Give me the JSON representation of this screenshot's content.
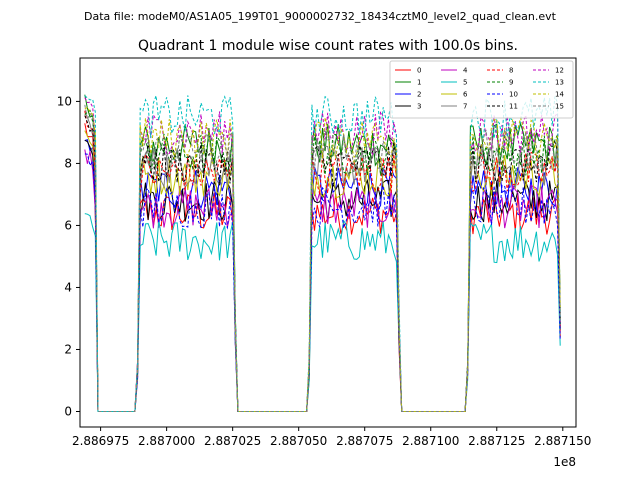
{
  "suptitle": "Data file: modeM0/AS1A05_199T01_9000002732_18434cztM0_level2_quad_clean.evt",
  "chart_data": {
    "type": "line",
    "title": "Quadrant 1 module wise count rates with 100.0s bins.",
    "xlabel": "",
    "ylabel": "",
    "x_offset_label": "1e8",
    "xlim": [
      288696720,
      288715500
    ],
    "ylim": [
      -0.5,
      11.4
    ],
    "x_ticks": [
      288697500,
      288700000,
      288702500,
      288705000,
      288707500,
      288710000,
      288712500,
      288715000
    ],
    "x_tick_labels": [
      "2.886975",
      "2.887000",
      "2.887025",
      "2.887050",
      "2.887075",
      "2.887100",
      "2.887125",
      "2.887150"
    ],
    "y_ticks": [
      0,
      2,
      4,
      6,
      8,
      10
    ],
    "y_tick_labels": [
      "0",
      "2",
      "4",
      "6",
      "8",
      "10"
    ],
    "grid": false,
    "legend_position": "upper-right",
    "bin_seconds": 100,
    "x_start": 288696900,
    "segments": [
      {
        "start": 288696900,
        "end": 288697300,
        "state": "on"
      },
      {
        "start": 288697400,
        "end": 288698800,
        "state": "off"
      },
      {
        "start": 288698900,
        "end": 288702600,
        "state": "on"
      },
      {
        "start": 288702700,
        "end": 288705300,
        "state": "off"
      },
      {
        "start": 288705400,
        "end": 288708800,
        "state": "on"
      },
      {
        "start": 288708900,
        "end": 288711300,
        "state": "off"
      },
      {
        "start": 288711400,
        "end": 288714900,
        "state": "on"
      }
    ],
    "series": [
      {
        "name": "0",
        "color": "#ff0000",
        "dash": "solid",
        "level": 6.4,
        "initial": 9.2
      },
      {
        "name": "1",
        "color": "#008000",
        "dash": "solid",
        "level": 8.6,
        "initial": 10.0
      },
      {
        "name": "2",
        "color": "#0000ff",
        "dash": "solid",
        "level": 7.2,
        "initial": 8.6
      },
      {
        "name": "3",
        "color": "#000000",
        "dash": "solid",
        "level": 6.8,
        "initial": 9.0
      },
      {
        "name": "4",
        "color": "#bf00bf",
        "dash": "solid",
        "level": 6.6,
        "initial": 8.4
      },
      {
        "name": "5",
        "color": "#00bfbf",
        "dash": "solid",
        "level": 5.5,
        "initial": 6.3
      },
      {
        "name": "6",
        "color": "#bfbf00",
        "dash": "solid",
        "level": 7.6,
        "initial": 9.0
      },
      {
        "name": "7",
        "color": "#808080",
        "dash": "solid",
        "level": 7.9,
        "initial": 9.4
      },
      {
        "name": "8",
        "color": "#ff0000",
        "dash": "dashed",
        "level": 7.7,
        "initial": 9.6
      },
      {
        "name": "9",
        "color": "#008000",
        "dash": "dashed",
        "level": 8.3,
        "initial": 9.8
      },
      {
        "name": "10",
        "color": "#0000ff",
        "dash": "dashed",
        "level": 6.6,
        "initial": 8.3
      },
      {
        "name": "11",
        "color": "#000000",
        "dash": "dashed",
        "level": 8.0,
        "initial": 9.5
      },
      {
        "name": "12",
        "color": "#bf00bf",
        "dash": "dashed",
        "level": 9.0,
        "initial": 10.1
      },
      {
        "name": "13",
        "color": "#00bfbf",
        "dash": "dashed",
        "level": 9.5,
        "initial": 10.4
      },
      {
        "name": "14",
        "color": "#bfbf00",
        "dash": "dashed",
        "level": 8.8,
        "initial": 9.9
      },
      {
        "name": "15",
        "color": "#808080",
        "dash": "dashed",
        "level": 8.4,
        "initial": 9.7
      }
    ]
  }
}
